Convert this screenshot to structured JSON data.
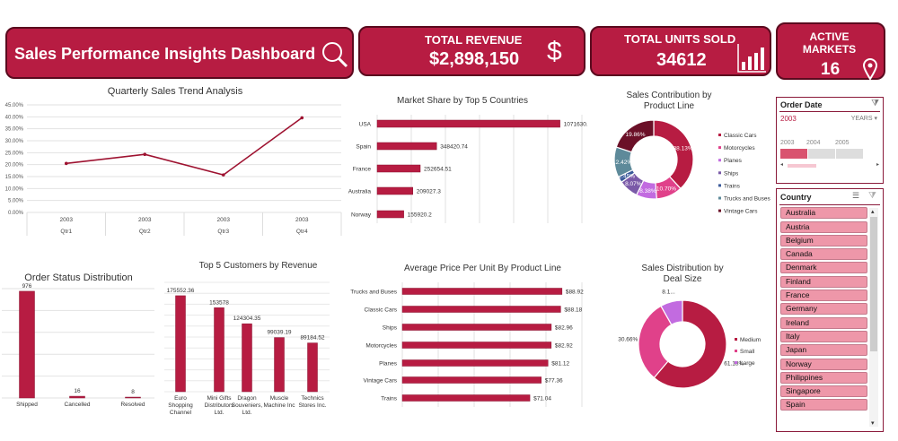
{
  "header": {
    "title": "Sales Performance Insights Dashboard",
    "revenue": {
      "label": "TOTAL REVENUE",
      "value": "$2,898,150"
    },
    "units": {
      "label": "TOTAL UNITS SOLD",
      "value": "34612"
    },
    "markets": {
      "label": "ACTIVE MARKETS",
      "value": "16"
    }
  },
  "colors": {
    "accent": "#b71c42",
    "dark": "#6b1028"
  },
  "order_date_slicer": {
    "title": "Order Date",
    "selected": "2003",
    "level": "YEARS",
    "years": [
      "2003",
      "2004",
      "2005"
    ]
  },
  "country_slicer": {
    "title": "Country",
    "items": [
      "Australia",
      "Austria",
      "Belgium",
      "Canada",
      "Denmark",
      "Finland",
      "France",
      "Germany",
      "Ireland",
      "Italy",
      "Japan",
      "Norway",
      "Philippines",
      "Singapore",
      "Spain"
    ]
  },
  "chart_data": [
    {
      "id": "quarterly",
      "type": "line",
      "title": "Quarterly Sales Trend Analysis",
      "categories": [
        [
          "2003",
          "Qtr1"
        ],
        [
          "2003",
          "Qtr2"
        ],
        [
          "2003",
          "Qtr3"
        ],
        [
          "2003",
          "Qtr4"
        ]
      ],
      "values": [
        20.5,
        24.3,
        15.7,
        39.6
      ],
      "ylim": [
        0,
        45
      ],
      "yticks": [
        "0.00%",
        "5.00%",
        "10.00%",
        "15.00%",
        "20.00%",
        "25.00%",
        "30.00%",
        "35.00%",
        "40.00%",
        "45.00%"
      ],
      "grid": true
    },
    {
      "id": "countries",
      "type": "bar",
      "orientation": "horizontal",
      "title": "Market Share by Top 5 Countries",
      "categories": [
        "USA",
        "Spain",
        "France",
        "Australia",
        "Norway"
      ],
      "values": [
        1071630.77,
        348420.74,
        252654.51,
        209027.3,
        155920.2
      ],
      "labels": [
        "1071630.77",
        "348420.74",
        "252654.51",
        "209027.3",
        "155920.2"
      ],
      "xlim": [
        0,
        1200000
      ]
    },
    {
      "id": "product_line",
      "type": "pie",
      "donut": true,
      "title": "Sales Contribution by Product Line",
      "categories": [
        "Classic Cars",
        "Motorcycles",
        "Planes",
        "Ships",
        "Trains",
        "Trucks and Buses",
        "Vintage Cars"
      ],
      "values": [
        38.13,
        10.7,
        8.38,
        8.07,
        2.45,
        12.42,
        19.86
      ],
      "labels": [
        "38.13%",
        "10.70%",
        "8.38%",
        "8.07%",
        "2.45%",
        "12.42%",
        "19.86%"
      ],
      "colors": [
        "#b71c42",
        "#e0418a",
        "#c26be0",
        "#7a5aa8",
        "#3b5a9a",
        "#5e8a9a",
        "#6b1028"
      ],
      "legend": "right"
    },
    {
      "id": "order_status",
      "type": "bar",
      "title": "Order Status Distribution",
      "categories": [
        "Shipped",
        "Cancelled",
        "Resolved"
      ],
      "values": [
        976,
        16,
        8
      ],
      "ylim": [
        0,
        1000
      ]
    },
    {
      "id": "customers",
      "type": "bar",
      "title": "Top 5 Customers by Revenue",
      "categories": [
        [
          "Euro",
          "Shopping",
          "Channel"
        ],
        [
          "Mini Gifts",
          "Distributors",
          "Ltd."
        ],
        [
          "Dragon",
          "Souveniers,",
          "Ltd."
        ],
        [
          "Muscle",
          "Machine Inc"
        ],
        [
          "Technics",
          "Stores Inc."
        ]
      ],
      "values": [
        175552.36,
        153578,
        124304.35,
        99039.19,
        89184.52
      ],
      "labels": [
        "175552.36",
        "153578",
        "124304.35",
        "99039.19",
        "89184.52"
      ],
      "ylim": [
        0,
        200000
      ]
    },
    {
      "id": "avg_price",
      "type": "bar",
      "orientation": "horizontal",
      "title": "Average Price Per Unit By Product Line",
      "categories": [
        "Trucks and Buses",
        "Classic Cars",
        "Ships",
        "Motorcycles",
        "Planes",
        "Vintage Cars",
        "Trains"
      ],
      "values": [
        88.92,
        88.18,
        82.96,
        82.92,
        81.12,
        77.36,
        71.04
      ],
      "labels": [
        "$88.92",
        "$88.18",
        "$82.96",
        "$82.92",
        "$81.12",
        "$77.36",
        "$71.04"
      ],
      "xlim": [
        0,
        100
      ]
    },
    {
      "id": "deal_size",
      "type": "pie",
      "donut": true,
      "title": "Sales Distribution by Deal Size",
      "categories": [
        "Medium",
        "Small",
        "Large"
      ],
      "values": [
        61.18,
        30.66,
        8.16
      ],
      "labels": [
        "61.18%",
        "30.66%",
        "8.1..."
      ],
      "colors": [
        "#b71c42",
        "#e0418a",
        "#c26be0"
      ],
      "legend": "right"
    }
  ]
}
